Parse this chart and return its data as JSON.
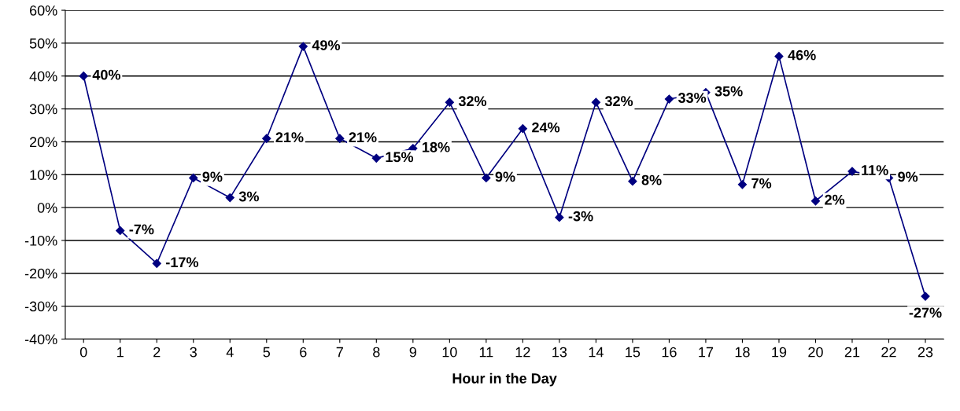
{
  "chart_data": {
    "type": "line",
    "xlabel": "Hour in the Day",
    "categories": [
      "0",
      "1",
      "2",
      "3",
      "4",
      "5",
      "6",
      "7",
      "8",
      "9",
      "10",
      "11",
      "12",
      "13",
      "14",
      "15",
      "16",
      "17",
      "18",
      "19",
      "20",
      "21",
      "22",
      "23"
    ],
    "series": [
      {
        "color": "#000080",
        "values": [
          40,
          -7,
          -17,
          9,
          3,
          21,
          49,
          21,
          15,
          18,
          32,
          9,
          24,
          -3,
          32,
          8,
          33,
          35,
          7,
          46,
          2,
          11,
          9,
          -27
        ],
        "value_labels": [
          "40%",
          "-7%",
          "-17%",
          "9%",
          "3%",
          "21%",
          "49%",
          "21%",
          "15%",
          "18%",
          "32%",
          "9%",
          "24%",
          "-3%",
          "32%",
          "8%",
          "33%",
          "35%",
          "7%",
          "46%",
          "2%",
          "11%",
          "9%",
          "-27%"
        ]
      }
    ],
    "ylim": [
      -40,
      60
    ],
    "yticks": [
      {
        "value": -40,
        "label": "-40%"
      },
      {
        "value": -30,
        "label": "-30%"
      },
      {
        "value": -20,
        "label": "-20%"
      },
      {
        "value": -10,
        "label": "-10%"
      },
      {
        "value": 0,
        "label": "0%"
      },
      {
        "value": 10,
        "label": "10%"
      },
      {
        "value": 20,
        "label": "20%"
      },
      {
        "value": 30,
        "label": "30%"
      },
      {
        "value": 40,
        "label": "40%"
      },
      {
        "value": 50,
        "label": "50%"
      },
      {
        "value": 60,
        "label": "60%"
      }
    ],
    "grid": "y",
    "marker": "diamond",
    "line_style": "solid"
  }
}
